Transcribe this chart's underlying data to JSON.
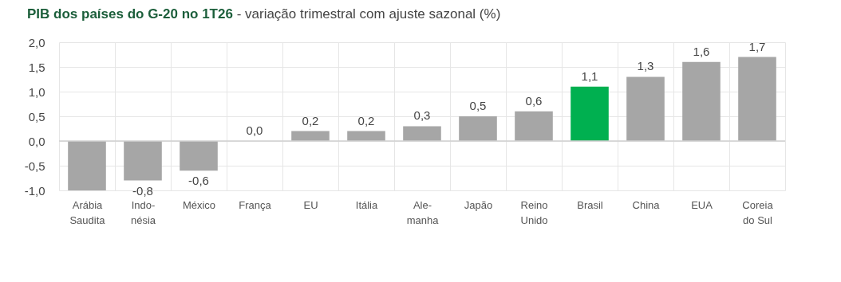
{
  "chart_data": {
    "type": "bar",
    "title": "PIB dos países do G-20 no 1T26",
    "subtitle": "- variação trimestral com ajuste sazonal (%)",
    "categories": [
      "Arábia Saudita",
      "Indo-nésia",
      "México",
      "França",
      "EU",
      "Itália",
      "Ale-manha",
      "Japão",
      "Reino Unido",
      "Brasil",
      "China",
      "EUA",
      "Coreia do Sul"
    ],
    "values": [
      -1.0,
      -0.8,
      -0.6,
      0.0,
      0.2,
      0.2,
      0.3,
      0.5,
      0.6,
      1.1,
      1.3,
      1.6,
      1.7
    ],
    "colors": [
      "#a6a6a6",
      "#a6a6a6",
      "#a6a6a6",
      "#a6a6a6",
      "#a6a6a6",
      "#a6a6a6",
      "#a6a6a6",
      "#a6a6a6",
      "#a6a6a6",
      "#00b050",
      "#a6a6a6",
      "#a6a6a6",
      "#a6a6a6"
    ],
    "value_labels": [
      null,
      "-0,8",
      "-0,6",
      "0,0",
      "0,2",
      "0,2",
      "0,3",
      "0,5",
      "0,6",
      "1,1",
      "1,3",
      "1,6",
      "1,7"
    ],
    "ylim": [
      -1.0,
      2.0
    ],
    "yticks": [
      {
        "value": -1.0,
        "label": "-1,0"
      },
      {
        "value": -0.5,
        "label": "-0,5"
      },
      {
        "value": 0,
        "label": "0,0"
      },
      {
        "value": 0.5,
        "label": "0,5"
      },
      {
        "value": 1.0,
        "label": "1,0"
      },
      {
        "value": 1.5,
        "label": "1,5"
      },
      {
        "value": 2.0,
        "label": "2,0"
      }
    ],
    "grid": true
  }
}
